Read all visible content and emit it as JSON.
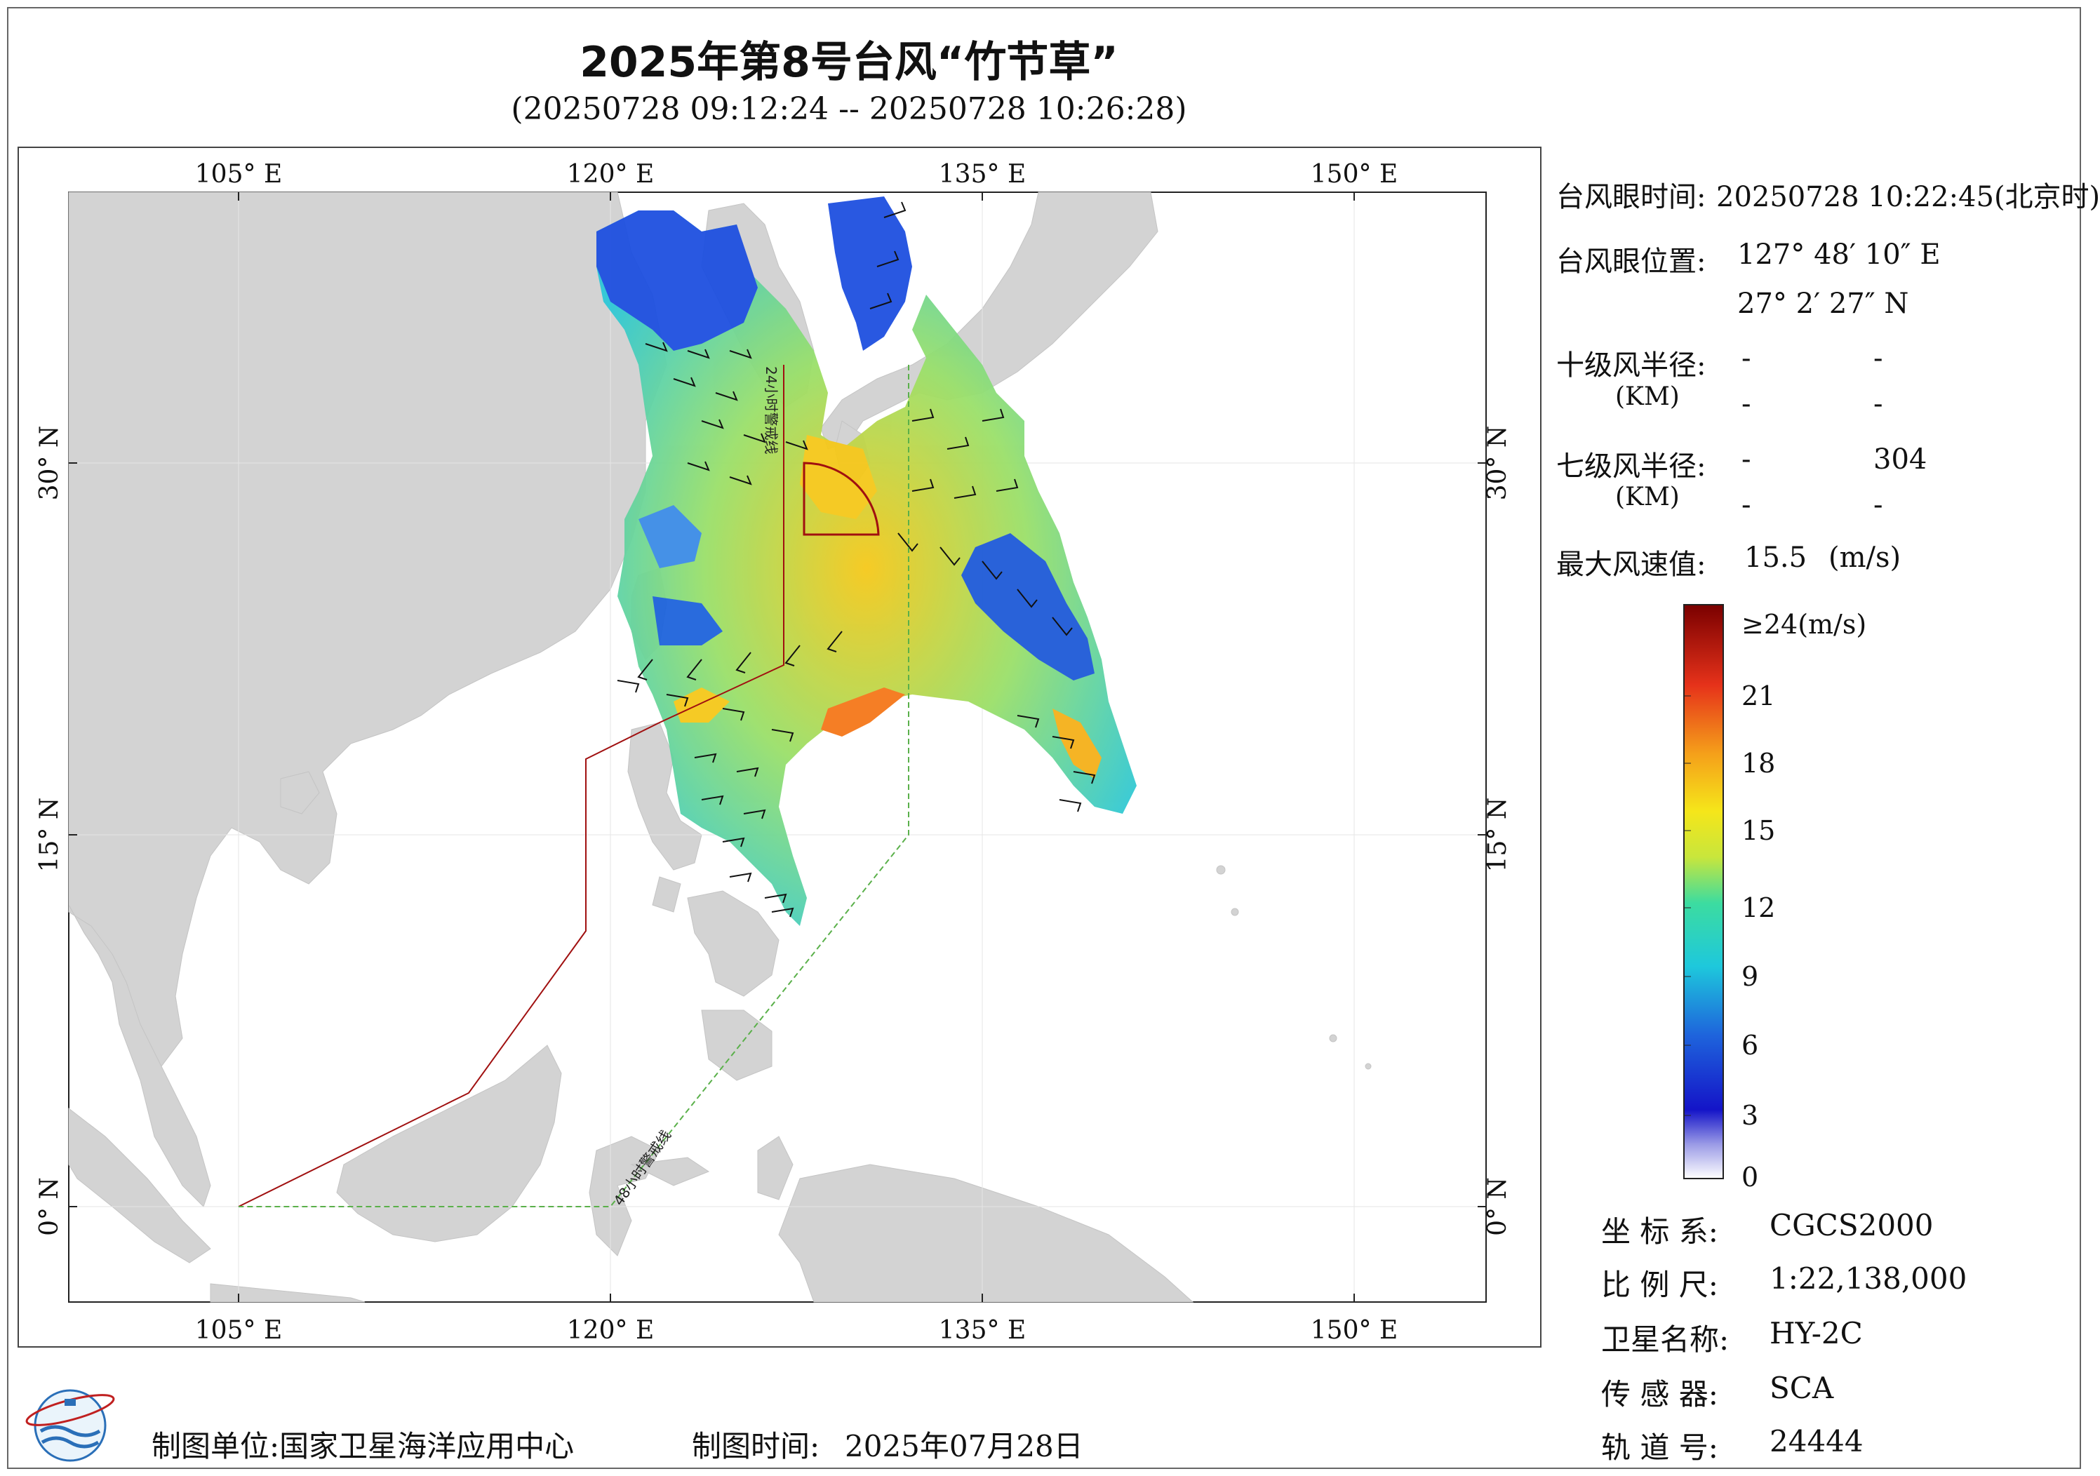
{
  "title": "2025年第8号台风“竹节草”",
  "subtitle": "(20250728 09:12:24 -- 20250728 10:26:28)",
  "map": {
    "lon_ticks": [
      "105° E",
      "120° E",
      "135° E",
      "150° E"
    ],
    "lat_ticks": [
      "30° N",
      "15° N",
      "0° N"
    ],
    "warning_24h_label": "24小时警戒线",
    "warning_48h_label": "48小时警戒线",
    "colors": {
      "land": "#d3d3d3",
      "ocean": "#ffffff",
      "line_24h": "#a01010",
      "line_48h": "#5ab04a"
    }
  },
  "info": {
    "eye_time_label": "台风眼时间:",
    "eye_time_value": "20250728 10:22:45(北京时)",
    "eye_pos_label": "台风眼位置:",
    "eye_lon": "127° 48′ 10″ E",
    "eye_lat": "27° 2′ 27″ N",
    "r10_label": "十级风半径:",
    "r10_unit": "(KM)",
    "r10_values": [
      "-",
      "-",
      "-",
      "-"
    ],
    "r7_label": "七级风半径:",
    "r7_unit": "(KM)",
    "r7_values": [
      "-",
      "304",
      "-",
      "-"
    ],
    "max_wind_label": "最大风速值:",
    "max_wind_value": "15.5",
    "max_wind_unit": "(m/s)"
  },
  "legend": {
    "top_label": "≥24(m/s)",
    "ticks": [
      "21",
      "18",
      "15",
      "12",
      "9",
      "6",
      "3",
      "0"
    ],
    "colors": [
      "#7a0000",
      "#d21a0a",
      "#f5781a",
      "#f5c81a",
      "#c8e63c",
      "#3cdca0",
      "#1ec8dc",
      "#1e64dc",
      "#1414c8",
      "#ffffff"
    ]
  },
  "meta": [
    {
      "label": "坐 标 系:",
      "value": "CGCS2000"
    },
    {
      "label": "比 例 尺:",
      "value": "1:22,138,000"
    },
    {
      "label": "卫星名称:",
      "value": "HY-2C"
    },
    {
      "label": "传 感 器:",
      "value": "SCA"
    },
    {
      "label": "轨 道 号:",
      "value": "24444"
    }
  ],
  "footer": {
    "unit_label": "制图单位:国家卫星海洋应用中心",
    "time_label": "制图时间:",
    "time_value": "2025年07月28日"
  }
}
